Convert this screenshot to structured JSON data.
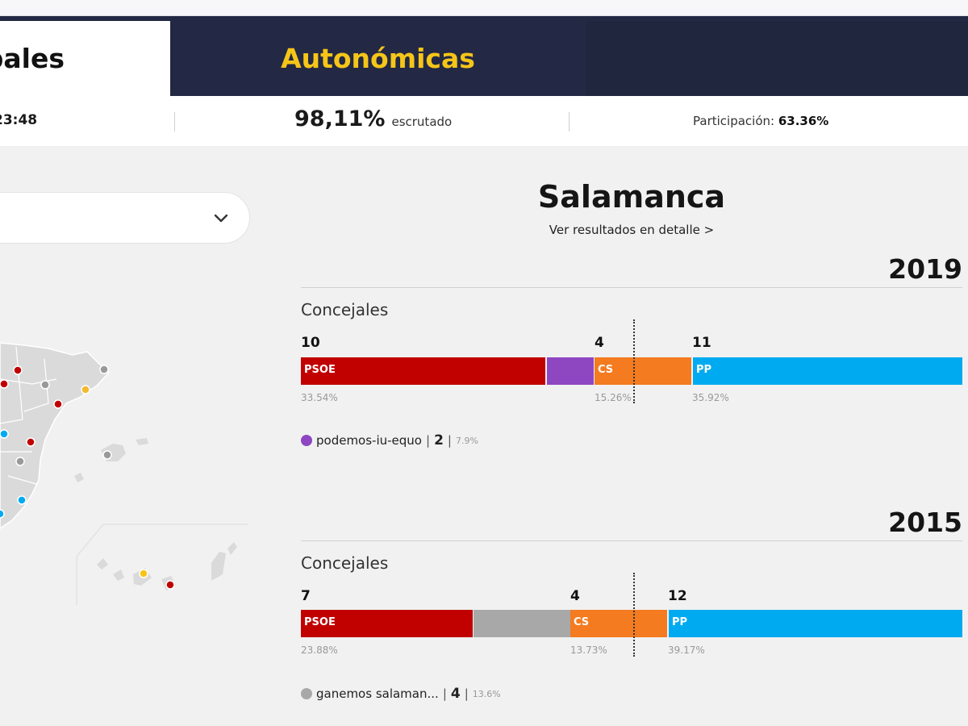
{
  "tabs": {
    "active_label": "Municipales",
    "inactive_label": "Autonómicas"
  },
  "status": {
    "time": "23:48",
    "scrutiny_value": "98,11%",
    "scrutiny_label": "escrutado",
    "participation_label": "Participación:",
    "participation_value": "63.36%"
  },
  "selector": {
    "icon": "chevron-down-icon"
  },
  "results": {
    "city": "Salamanca",
    "detail_link": "Ver resultados en detalle >",
    "elections": [
      {
        "year": "2019",
        "section_label": "Concejales",
        "parties": [
          {
            "name": "PSOE",
            "seats": "10",
            "pct": "33.54%",
            "color": "#c10000"
          },
          {
            "name": "",
            "seats": "",
            "pct": "",
            "color": "#8e47c1"
          },
          {
            "name": "CS",
            "seats": "4",
            "pct": "15.26%",
            "color": "#f47b20"
          },
          {
            "name": "PP",
            "seats": "11",
            "pct": "35.92%",
            "color": "#00aaf0"
          }
        ],
        "legend": {
          "name": "podemos-iu-equo",
          "seats": "2",
          "share": "7.9%",
          "color": "#8e47c1"
        }
      },
      {
        "year": "2015",
        "section_label": "Concejales",
        "parties": [
          {
            "name": "PSOE",
            "seats": "7",
            "pct": "23.88%",
            "color": "#c10000"
          },
          {
            "name": "",
            "seats": "",
            "pct": "",
            "color": "#a8a8a8"
          },
          {
            "name": "CS",
            "seats": "4",
            "pct": "13.73%",
            "color": "#f47b20"
          },
          {
            "name": "PP",
            "seats": "12",
            "pct": "39.17%",
            "color": "#00aaf0"
          }
        ],
        "legend": {
          "name": "ganemos salaman...",
          "seats": "4",
          "share": "13.6%",
          "color": "#a8a8a8"
        }
      }
    ]
  },
  "map": {
    "marker_colors": [
      "#c10000",
      "#999999",
      "#00aaf0",
      "#f5b82e",
      "#f5c518"
    ]
  }
}
